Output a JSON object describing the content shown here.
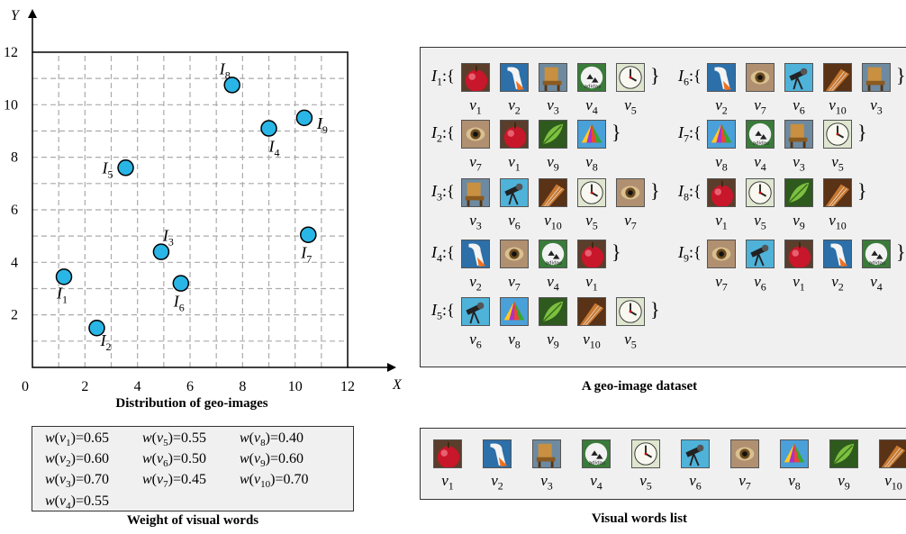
{
  "scatter": {
    "x_axis_label": "X",
    "y_axis_label": "Y",
    "x_ticks": [
      "0",
      "2",
      "4",
      "6",
      "8",
      "10",
      "12"
    ],
    "y_ticks": [
      "2",
      "4",
      "6",
      "8",
      "10",
      "12"
    ],
    "caption": "Distribution  of geo-images",
    "point_color": "#29b6e6",
    "points": [
      {
        "label": "I",
        "sub": "1",
        "x": 1.2,
        "y": 3.45
      },
      {
        "label": "I",
        "sub": "2",
        "x": 2.45,
        "y": 1.5
      },
      {
        "label": "I",
        "sub": "3",
        "x": 4.9,
        "y": 4.4
      },
      {
        "label": "I",
        "sub": "4",
        "x": 9.0,
        "y": 9.1
      },
      {
        "label": "I",
        "sub": "5",
        "x": 3.55,
        "y": 7.6
      },
      {
        "label": "I",
        "sub": "6",
        "x": 5.65,
        "y": 3.2
      },
      {
        "label": "I",
        "sub": "7",
        "x": 10.5,
        "y": 5.05
      },
      {
        "label": "I",
        "sub": "8",
        "x": 7.6,
        "y": 10.75
      },
      {
        "label": "I",
        "sub": "9",
        "x": 10.35,
        "y": 9.5
      }
    ]
  },
  "weights": {
    "caption": "Weight of visual words",
    "columns": [
      [
        "w(v1)=0.65",
        "w(v2)=0.60",
        "w(v3)=0.70",
        "w(v4)=0.55"
      ],
      [
        "w(v5)=0.55",
        "w(v6)=0.50",
        "w(v7)=0.45"
      ],
      [
        "w(v8)=0.40",
        "w(v9)=0.60",
        "w(v10)=0.70"
      ]
    ]
  },
  "dataset": {
    "caption": "A geo-image dataset",
    "left_column": [
      {
        "image": "I1",
        "words": [
          "v1",
          "v2",
          "v3",
          "v4",
          "v5"
        ]
      },
      {
        "image": "I2",
        "words": [
          "v7",
          "v1",
          "v9",
          "v8"
        ]
      },
      {
        "image": "I3",
        "words": [
          "v3",
          "v6",
          "v10",
          "v5",
          "v7"
        ]
      },
      {
        "image": "I4",
        "words": [
          "v2",
          "v7",
          "v4",
          "v1"
        ]
      },
      {
        "image": "I5",
        "words": [
          "v6",
          "v8",
          "v9",
          "v10",
          "v5"
        ]
      }
    ],
    "right_column": [
      {
        "image": "I6",
        "words": [
          "v2",
          "v7",
          "v6",
          "v10",
          "v3"
        ]
      },
      {
        "image": "I7",
        "words": [
          "v8",
          "v4",
          "v3",
          "v5"
        ]
      },
      {
        "image": "I8",
        "words": [
          "v1",
          "v5",
          "v9",
          "v10"
        ]
      },
      {
        "image": "I9",
        "words": [
          "v7",
          "v6",
          "v1",
          "v2",
          "v4"
        ]
      }
    ]
  },
  "visual_words": {
    "caption": "Visual words list",
    "list": [
      "v1",
      "v2",
      "v3",
      "v4",
      "v5",
      "v6",
      "v7",
      "v8",
      "v9",
      "v10"
    ],
    "icons": {
      "v1": "red-apple-icon",
      "v2": "swan-head-icon",
      "v3": "wooden-chair-icon",
      "v4": "soccer-ball-icon",
      "v5": "clock-face-icon",
      "v6": "telescope-icon",
      "v7": "cat-eye-icon",
      "v8": "colorful-umbrella-icon",
      "v9": "leaf-icon",
      "v10": "guitar-icon"
    }
  }
}
